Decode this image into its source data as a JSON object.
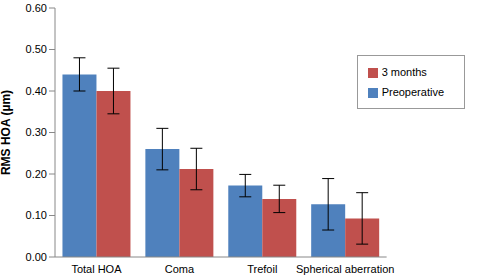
{
  "chart_data": {
    "type": "bar",
    "y_label": "RMS HOA (µm)",
    "categories": [
      "Total HOA",
      "Coma",
      "Trefoil",
      "Spherical aberration"
    ],
    "series": [
      {
        "name": "Preoperative",
        "color": "#4f81bd",
        "values": [
          0.44,
          0.26,
          0.172,
          0.127
        ],
        "errors": [
          0.04,
          0.05,
          0.027,
          0.062
        ]
      },
      {
        "name": "3 months",
        "color": "#c0504d",
        "values": [
          0.4,
          0.212,
          0.14,
          0.093
        ],
        "errors": [
          0.055,
          0.05,
          0.033,
          0.062
        ]
      }
    ],
    "ylim": [
      0,
      0.6
    ],
    "yticks": [
      {
        "value": 0,
        "label": "0.00"
      },
      {
        "value": 0.1,
        "label": "0.10"
      },
      {
        "value": 0.2,
        "label": "0.20"
      },
      {
        "value": 0.3,
        "label": "0.30"
      },
      {
        "value": 0.4,
        "label": "0.40"
      },
      {
        "value": 0.5,
        "label": "0.50"
      },
      {
        "value": 0.6,
        "label": "0.60"
      }
    ],
    "grid": false,
    "legend": "upper right"
  }
}
